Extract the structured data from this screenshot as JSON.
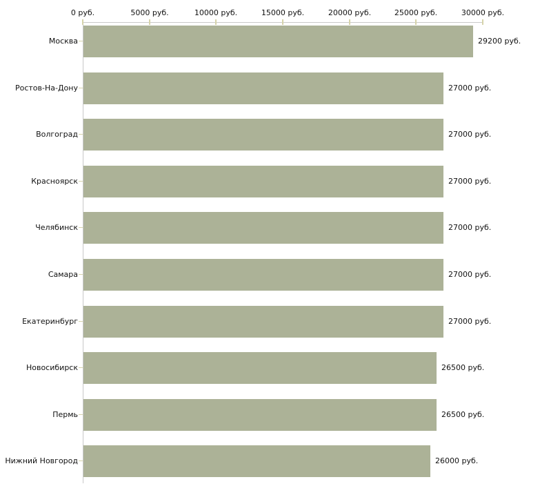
{
  "chart_data": {
    "type": "bar",
    "orientation": "horizontal",
    "title": "",
    "xlabel": "",
    "ylabel": "",
    "unit": "руб.",
    "categories": [
      "Москва",
      "Ростов-На-Дону",
      "Волгоград",
      "Красноярск",
      "Челябинск",
      "Самара",
      "Екатеринбург",
      "Новосибирск",
      "Пермь",
      "Нижний Новгород"
    ],
    "values": [
      29200,
      27000,
      27000,
      27000,
      27000,
      27000,
      27000,
      26500,
      26500,
      26000
    ],
    "value_labels": [
      "29200 руб.",
      "27000 руб.",
      "27000 руб.",
      "27000 руб.",
      "27000 руб.",
      "27000 руб.",
      "27000 руб.",
      "26500 руб.",
      "26500 руб.",
      "26000 руб."
    ],
    "x_axis": {
      "min": 0,
      "max": 30000,
      "ticks": [
        0,
        5000,
        10000,
        15000,
        20000,
        25000,
        30000
      ],
      "tick_labels": [
        "0 руб.",
        "5000 руб.",
        "10000 руб.",
        "15000 руб.",
        "20000 руб.",
        "25000 руб.",
        "30000 руб."
      ],
      "position": "top"
    },
    "grid": false,
    "legend": false,
    "colors": {
      "bar": "#acb297",
      "axis_line": "#c8c8c8",
      "tick_mark": "#d6d3aa",
      "text": "#111111",
      "background": "#ffffff"
    }
  }
}
